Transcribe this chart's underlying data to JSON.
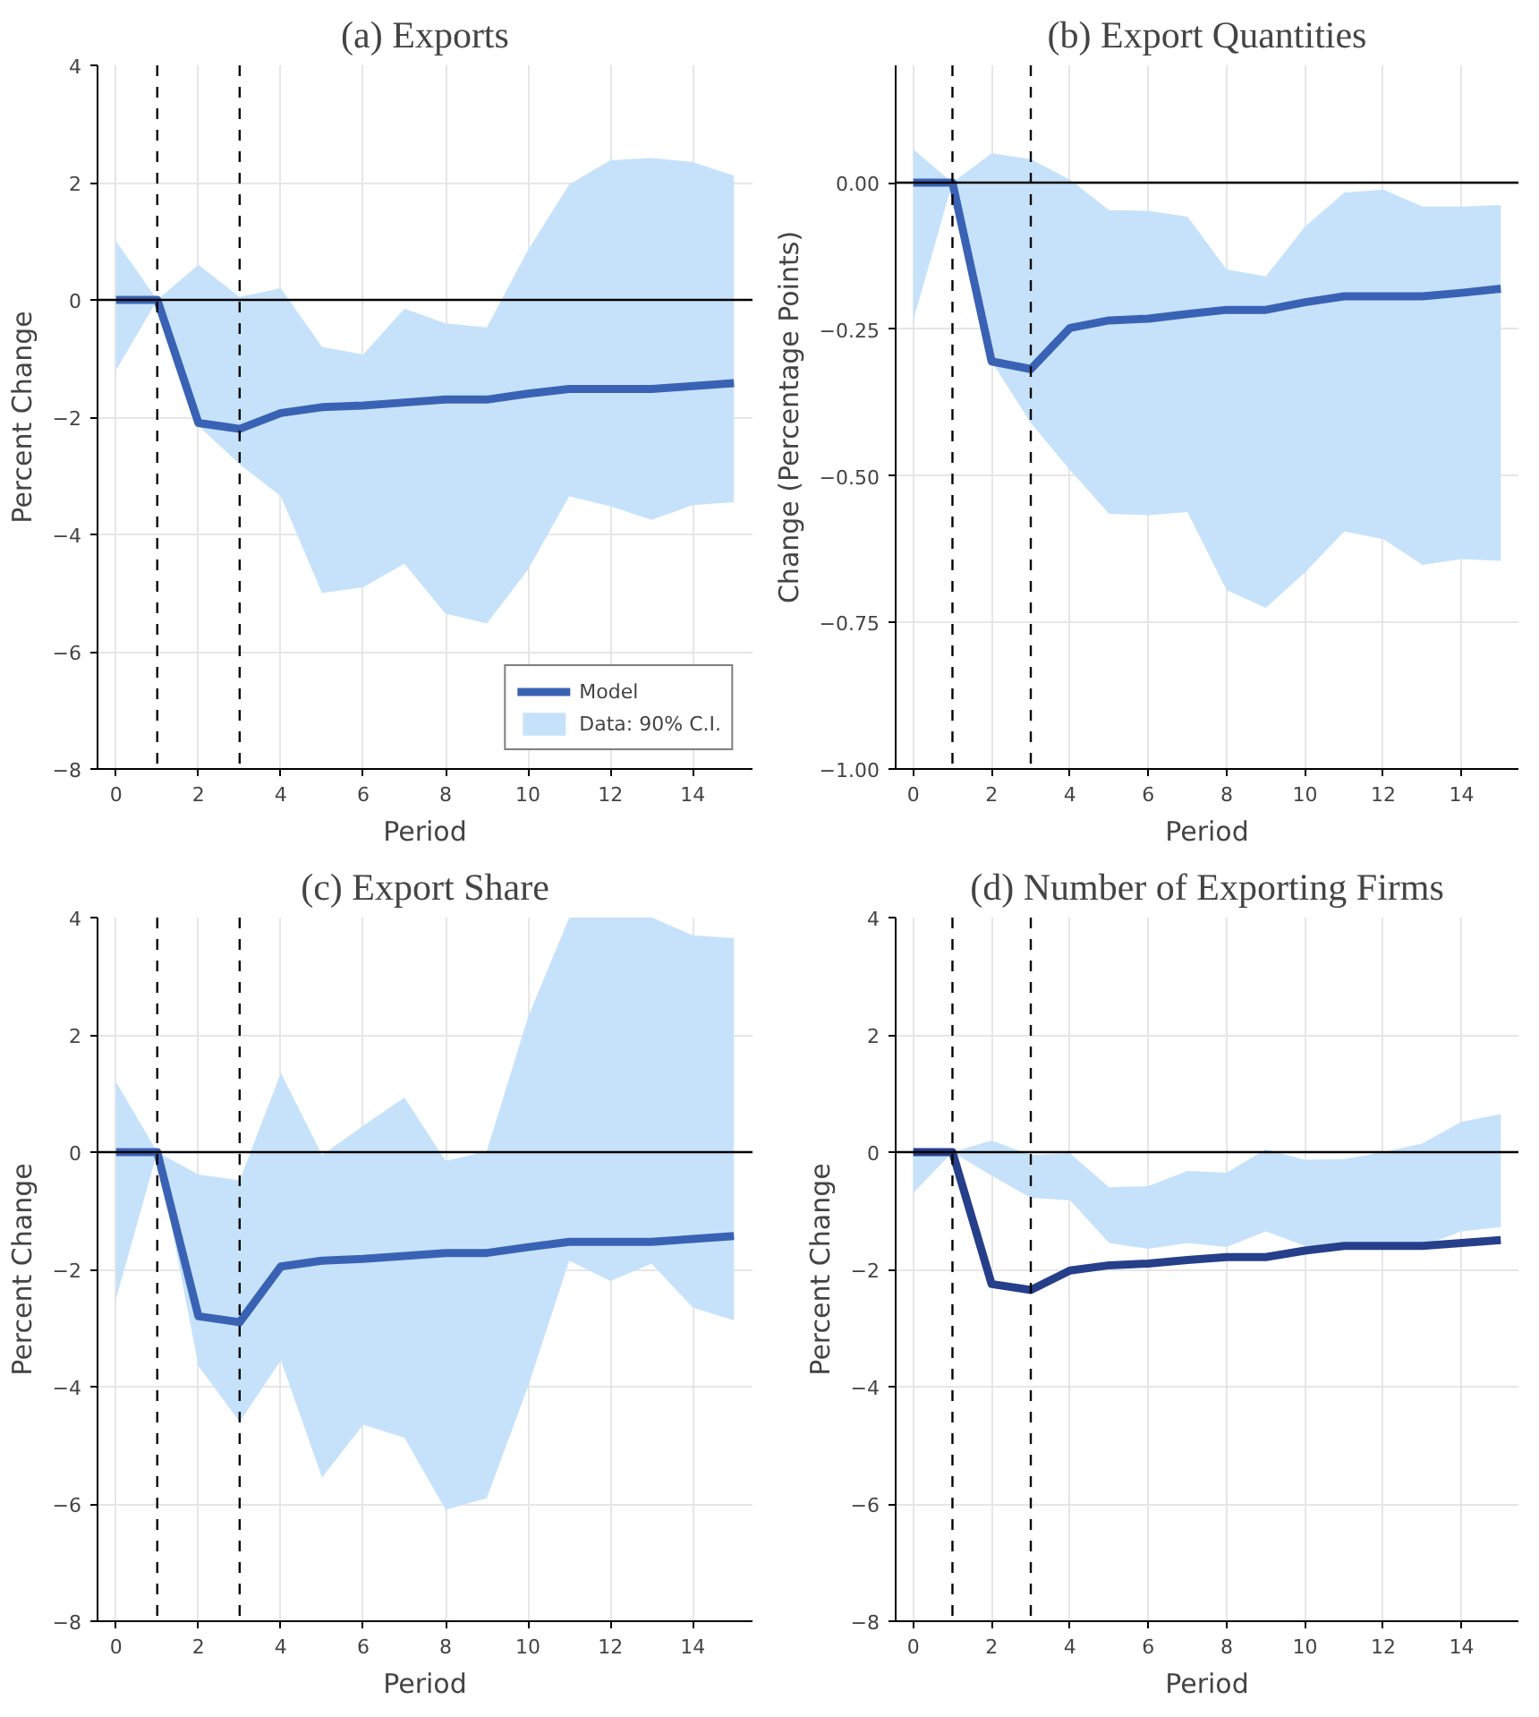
{
  "chart_data": [
    {
      "type": "line",
      "title": "(a) Exports",
      "xlabel": "Period",
      "ylabel": "Percent Change",
      "x": [
        0,
        1,
        2,
        3,
        4,
        5,
        6,
        7,
        8,
        9,
        10,
        11,
        12,
        13,
        14,
        15
      ],
      "xlim": [
        -0.45,
        15.45
      ],
      "xticks": [
        0,
        2,
        4,
        6,
        8,
        10,
        12,
        14
      ],
      "ylim": [
        -8,
        4
      ],
      "yticks": [
        {
          "value": -8,
          "label": "−8"
        },
        {
          "value": -6,
          "label": "−6"
        },
        {
          "value": -4,
          "label": "−4"
        },
        {
          "value": -2,
          "label": "−2"
        },
        0,
        2,
        4
      ],
      "grid": true,
      "legend": "bottom right",
      "line_style": "solid",
      "marker": "none",
      "ref_lines": [
        {
          "axis": "y",
          "value": 0,
          "color": "#000000",
          "line_style": "solid"
        },
        {
          "axis": "x",
          "value": 1,
          "color": "#000000",
          "line_style": "dashed"
        },
        {
          "axis": "x",
          "value": 3,
          "color": "#000000",
          "line_style": "dashed"
        }
      ],
      "series": [
        {
          "name": "Data: 90% C.I.",
          "color": "#c6e2fb",
          "values": [
            null,
            null,
            null,
            null,
            null,
            null,
            null,
            null,
            null,
            null,
            null,
            null,
            null,
            null,
            null,
            null
          ],
          "lower": [
            -1.2,
            0.0,
            -2.15,
            -2.8,
            -3.35,
            -5.0,
            -4.9,
            -4.5,
            -5.35,
            -5.52,
            -4.6,
            -3.35,
            -3.52,
            -3.75,
            -3.5,
            -3.45
          ],
          "upper": [
            1.0,
            0.0,
            0.6,
            0.05,
            0.2,
            -0.8,
            -0.93,
            -0.15,
            -0.4,
            -0.47,
            0.85,
            1.97,
            2.38,
            2.42,
            2.35,
            2.12
          ]
        },
        {
          "name": "Model",
          "color": "#3a62b4",
          "values": [
            0,
            0,
            -2.1,
            -2.2,
            -1.93,
            -1.83,
            -1.8,
            -1.75,
            -1.7,
            -1.7,
            -1.6,
            -1.52,
            -1.52,
            -1.52,
            -1.47,
            -1.42
          ]
        }
      ]
    },
    {
      "type": "line",
      "title": "(b) Export Quantities",
      "xlabel": "Period",
      "ylabel": "Change (Percentage Points)",
      "x": [
        0,
        1,
        2,
        3,
        4,
        5,
        6,
        7,
        8,
        9,
        10,
        11,
        12,
        13,
        14,
        15
      ],
      "xlim": [
        -0.45,
        15.45
      ],
      "xticks": [
        0,
        2,
        4,
        6,
        8,
        10,
        12,
        14
      ],
      "ylim": [
        -1,
        0.2
      ],
      "yticks": [
        {
          "value": -1,
          "label": "−1.00"
        },
        {
          "value": -0.75,
          "label": "−0.75"
        },
        {
          "value": -0.5,
          "label": "−0.50"
        },
        {
          "value": -0.25,
          "label": "−0.25"
        },
        {
          "value": 0,
          "label": "0.00"
        }
      ],
      "grid": true,
      "line_style": "solid",
      "marker": "none",
      "ref_lines": [
        {
          "axis": "y",
          "value": 0,
          "color": "#000000",
          "line_style": "solid"
        },
        {
          "axis": "x",
          "value": 1,
          "color": "#000000",
          "line_style": "dashed"
        },
        {
          "axis": "x",
          "value": 3,
          "color": "#000000",
          "line_style": "dashed"
        }
      ],
      "series": [
        {
          "color": "#c6e2fb",
          "values": [
            null,
            null,
            null,
            null,
            null,
            null,
            null,
            null,
            null,
            null,
            null,
            null,
            null,
            null,
            null,
            null
          ],
          "lower": [
            -0.235,
            0.0,
            -0.305,
            -0.41,
            -0.49,
            -0.565,
            -0.567,
            -0.562,
            -0.695,
            -0.725,
            -0.665,
            -0.595,
            -0.608,
            -0.652,
            -0.642,
            -0.645
          ],
          "upper": [
            0.057,
            0.0,
            0.05,
            0.04,
            0.005,
            -0.047,
            -0.048,
            -0.058,
            -0.148,
            -0.16,
            -0.075,
            -0.017,
            -0.012,
            -0.041,
            -0.041,
            -0.038
          ]
        },
        {
          "color": "#3a62b4",
          "values": [
            0,
            0,
            -0.305,
            -0.318,
            -0.248,
            -0.235,
            -0.232,
            -0.224,
            -0.217,
            -0.217,
            -0.204,
            -0.194,
            -0.194,
            -0.194,
            -0.188,
            -0.181
          ]
        }
      ]
    },
    {
      "type": "line",
      "title": "(c) Export Share",
      "xlabel": "Period",
      "ylabel": "Percent Change",
      "x": [
        0,
        1,
        2,
        3,
        4,
        5,
        6,
        7,
        8,
        9,
        10,
        11,
        12,
        13,
        14,
        15
      ],
      "xlim": [
        -0.45,
        15.45
      ],
      "xticks": [
        0,
        2,
        4,
        6,
        8,
        10,
        12,
        14
      ],
      "ylim": [
        -8,
        4
      ],
      "yticks": [
        {
          "value": -8,
          "label": "−8"
        },
        {
          "value": -6,
          "label": "−6"
        },
        {
          "value": -4,
          "label": "−4"
        },
        {
          "value": -2,
          "label": "−2"
        },
        0,
        2,
        4
      ],
      "grid": true,
      "line_style": "solid",
      "marker": "none",
      "ref_lines": [
        {
          "axis": "y",
          "value": 0,
          "color": "#000000",
          "line_style": "solid"
        },
        {
          "axis": "x",
          "value": 1,
          "color": "#000000",
          "line_style": "dashed"
        },
        {
          "axis": "x",
          "value": 3,
          "color": "#000000",
          "line_style": "dashed"
        }
      ],
      "series": [
        {
          "color": "#c6e2fb",
          "values": [
            null,
            null,
            null,
            null,
            null,
            null,
            null,
            null,
            null,
            null,
            null,
            null,
            null,
            null,
            null,
            null
          ],
          "lower": [
            -2.5,
            0.0,
            -3.65,
            -4.6,
            -3.55,
            -5.55,
            -4.65,
            -4.87,
            -6.1,
            -5.9,
            -4.0,
            -1.85,
            -2.2,
            -1.9,
            -2.65,
            -2.87
          ],
          "upper": [
            1.2,
            0.0,
            -0.38,
            -0.48,
            1.35,
            -0.05,
            0.45,
            0.93,
            -0.15,
            0.02,
            2.3,
            4,
            4,
            4,
            3.7,
            3.65
          ]
        },
        {
          "color": "#3a62b4",
          "values": [
            0,
            0,
            -2.8,
            -2.9,
            -1.95,
            -1.85,
            -1.82,
            -1.77,
            -1.72,
            -1.72,
            -1.62,
            -1.53,
            -1.53,
            -1.53,
            -1.48,
            -1.43
          ]
        }
      ]
    },
    {
      "type": "line",
      "title": "(d) Number of Exporting Firms",
      "xlabel": "Period",
      "ylabel": "Percent Change",
      "x": [
        0,
        1,
        2,
        3,
        4,
        5,
        6,
        7,
        8,
        9,
        10,
        11,
        12,
        13,
        14,
        15
      ],
      "xlim": [
        -0.45,
        15.45
      ],
      "xticks": [
        0,
        2,
        4,
        6,
        8,
        10,
        12,
        14
      ],
      "ylim": [
        -8,
        4
      ],
      "yticks": [
        {
          "value": -8,
          "label": "−8"
        },
        {
          "value": -6,
          "label": "−6"
        },
        {
          "value": -4,
          "label": "−4"
        },
        {
          "value": -2,
          "label": "−2"
        },
        0,
        2,
        4
      ],
      "grid": true,
      "line_style": "solid",
      "marker": "none",
      "ref_lines": [
        {
          "axis": "y",
          "value": 0,
          "color": "#000000",
          "line_style": "solid"
        },
        {
          "axis": "x",
          "value": 1,
          "color": "#000000",
          "line_style": "dashed"
        },
        {
          "axis": "x",
          "value": 3,
          "color": "#000000",
          "line_style": "dashed"
        }
      ],
      "series": [
        {
          "color": "#c6e2fb",
          "values": [
            null,
            null,
            null,
            null,
            null,
            null,
            null,
            null,
            null,
            null,
            null,
            null,
            null,
            null,
            null,
            null
          ],
          "lower": [
            -0.7,
            0.0,
            -0.4,
            -0.78,
            -0.82,
            -1.55,
            -1.65,
            -1.55,
            -1.62,
            -1.35,
            -1.6,
            -1.65,
            -1.65,
            -1.6,
            -1.35,
            -1.28
          ],
          "upper": [
            0.0,
            0.0,
            0.2,
            -0.05,
            -0.02,
            -0.6,
            -0.58,
            -0.32,
            -0.35,
            0.05,
            -0.13,
            -0.12,
            0.0,
            0.15,
            0.52,
            0.65
          ]
        },
        {
          "color": "#263f8a",
          "values": [
            0,
            0,
            -2.25,
            -2.35,
            -2.02,
            -1.93,
            -1.9,
            -1.84,
            -1.79,
            -1.79,
            -1.68,
            -1.6,
            -1.6,
            -1.6,
            -1.55,
            -1.5
          ]
        }
      ]
    }
  ]
}
